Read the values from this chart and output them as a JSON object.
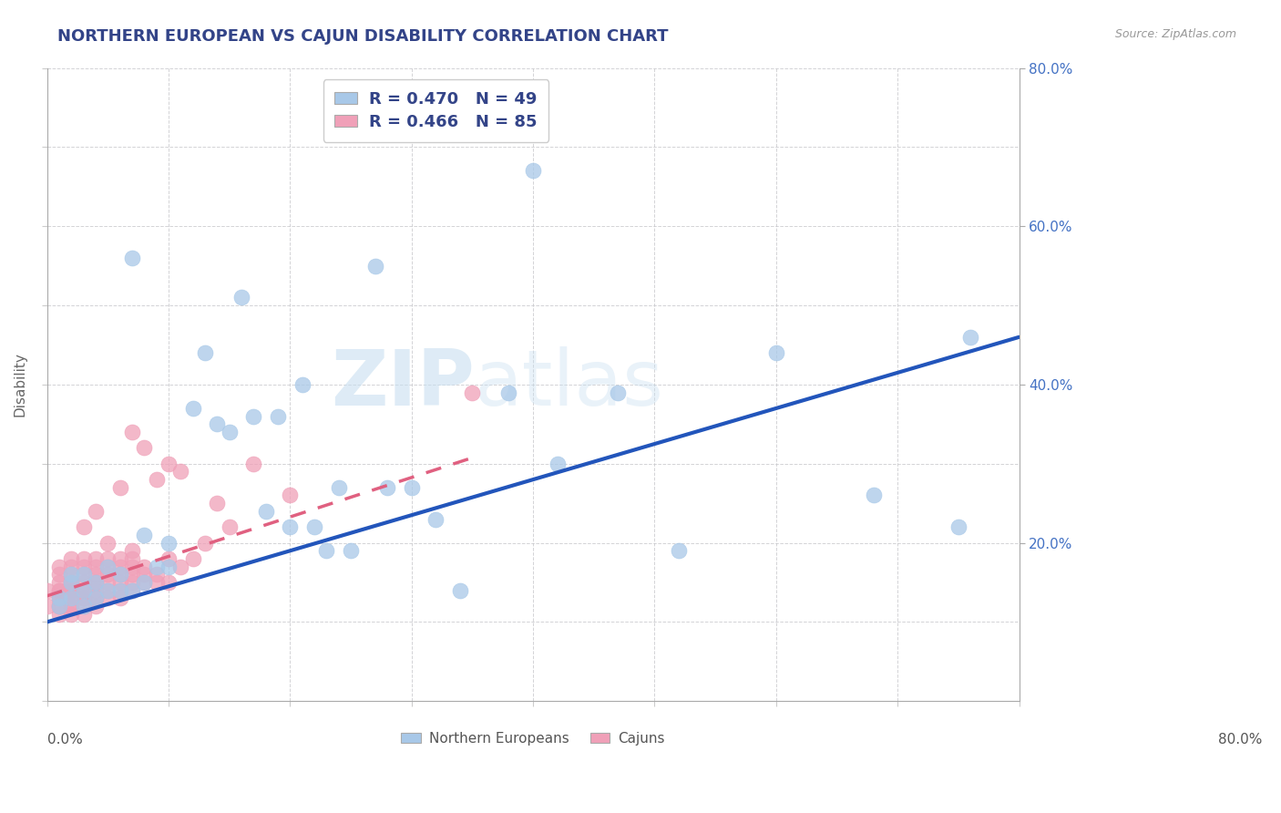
{
  "title": "NORTHERN EUROPEAN VS CAJUN DISABILITY CORRELATION CHART",
  "source": "Source: ZipAtlas.com",
  "ylabel": "Disability",
  "watermark_zip": "ZIP",
  "watermark_atlas": "atlas",
  "legend_ne": "R = 0.470   N = 49",
  "legend_ca": "R = 0.466   N = 85",
  "legend_ne_label": "Northern Europeans",
  "legend_ca_label": "Cajuns",
  "ne_color": "#a8c8e8",
  "ca_color": "#f0a0b8",
  "ne_line_color": "#2255bb",
  "ca_line_color": "#e06080",
  "ca_line_dash": [
    6,
    4
  ],
  "grid_color": "#c8c8cc",
  "title_color": "#334488",
  "legend_text_color": "#334488",
  "right_tick_color": "#4472c4",
  "xlim": [
    0.0,
    0.8
  ],
  "ylim": [
    0.0,
    0.8
  ],
  "ne_trend_x0": 0.0,
  "ne_trend_y0": 0.1,
  "ne_trend_x1": 0.8,
  "ne_trend_y1": 0.46,
  "ca_trend_x0": 0.0,
  "ca_trend_y0": 0.133,
  "ca_trend_x1": 0.355,
  "ca_trend_y1": 0.31,
  "ne_scatter_x": [
    0.01,
    0.01,
    0.02,
    0.02,
    0.02,
    0.03,
    0.03,
    0.03,
    0.04,
    0.04,
    0.05,
    0.05,
    0.06,
    0.06,
    0.07,
    0.07,
    0.08,
    0.08,
    0.09,
    0.1,
    0.1,
    0.12,
    0.13,
    0.14,
    0.15,
    0.16,
    0.17,
    0.18,
    0.19,
    0.2,
    0.21,
    0.22,
    0.23,
    0.24,
    0.25,
    0.27,
    0.28,
    0.3,
    0.32,
    0.34,
    0.38,
    0.4,
    0.42,
    0.47,
    0.52,
    0.6,
    0.68,
    0.75,
    0.76
  ],
  "ne_scatter_y": [
    0.12,
    0.13,
    0.13,
    0.15,
    0.16,
    0.14,
    0.16,
    0.12,
    0.13,
    0.15,
    0.14,
    0.17,
    0.14,
    0.16,
    0.14,
    0.56,
    0.15,
    0.21,
    0.17,
    0.17,
    0.2,
    0.37,
    0.44,
    0.35,
    0.34,
    0.51,
    0.36,
    0.24,
    0.36,
    0.22,
    0.4,
    0.22,
    0.19,
    0.27,
    0.19,
    0.55,
    0.27,
    0.27,
    0.23,
    0.14,
    0.39,
    0.67,
    0.3,
    0.39,
    0.19,
    0.44,
    0.26,
    0.22,
    0.46
  ],
  "ca_scatter_x": [
    0.0,
    0.0,
    0.01,
    0.01,
    0.01,
    0.01,
    0.01,
    0.01,
    0.01,
    0.01,
    0.01,
    0.01,
    0.02,
    0.02,
    0.02,
    0.02,
    0.02,
    0.02,
    0.02,
    0.02,
    0.02,
    0.02,
    0.02,
    0.02,
    0.03,
    0.03,
    0.03,
    0.03,
    0.03,
    0.03,
    0.03,
    0.03,
    0.03,
    0.03,
    0.03,
    0.04,
    0.04,
    0.04,
    0.04,
    0.04,
    0.04,
    0.04,
    0.04,
    0.04,
    0.04,
    0.05,
    0.05,
    0.05,
    0.05,
    0.05,
    0.05,
    0.05,
    0.06,
    0.06,
    0.06,
    0.06,
    0.06,
    0.06,
    0.06,
    0.07,
    0.07,
    0.07,
    0.07,
    0.07,
    0.07,
    0.07,
    0.08,
    0.08,
    0.08,
    0.08,
    0.09,
    0.09,
    0.09,
    0.1,
    0.1,
    0.1,
    0.11,
    0.11,
    0.12,
    0.13,
    0.14,
    0.15,
    0.17,
    0.2,
    0.35
  ],
  "ca_scatter_y": [
    0.12,
    0.14,
    0.11,
    0.12,
    0.12,
    0.13,
    0.13,
    0.14,
    0.14,
    0.15,
    0.16,
    0.17,
    0.11,
    0.12,
    0.12,
    0.13,
    0.13,
    0.14,
    0.14,
    0.15,
    0.15,
    0.16,
    0.17,
    0.18,
    0.11,
    0.12,
    0.13,
    0.13,
    0.14,
    0.14,
    0.15,
    0.16,
    0.17,
    0.18,
    0.22,
    0.12,
    0.13,
    0.13,
    0.14,
    0.15,
    0.15,
    0.16,
    0.17,
    0.18,
    0.24,
    0.13,
    0.14,
    0.15,
    0.16,
    0.17,
    0.18,
    0.2,
    0.13,
    0.14,
    0.15,
    0.16,
    0.17,
    0.18,
    0.27,
    0.14,
    0.15,
    0.16,
    0.17,
    0.18,
    0.19,
    0.34,
    0.15,
    0.16,
    0.17,
    0.32,
    0.15,
    0.16,
    0.28,
    0.15,
    0.18,
    0.3,
    0.17,
    0.29,
    0.18,
    0.2,
    0.25,
    0.22,
    0.3,
    0.26,
    0.39
  ]
}
